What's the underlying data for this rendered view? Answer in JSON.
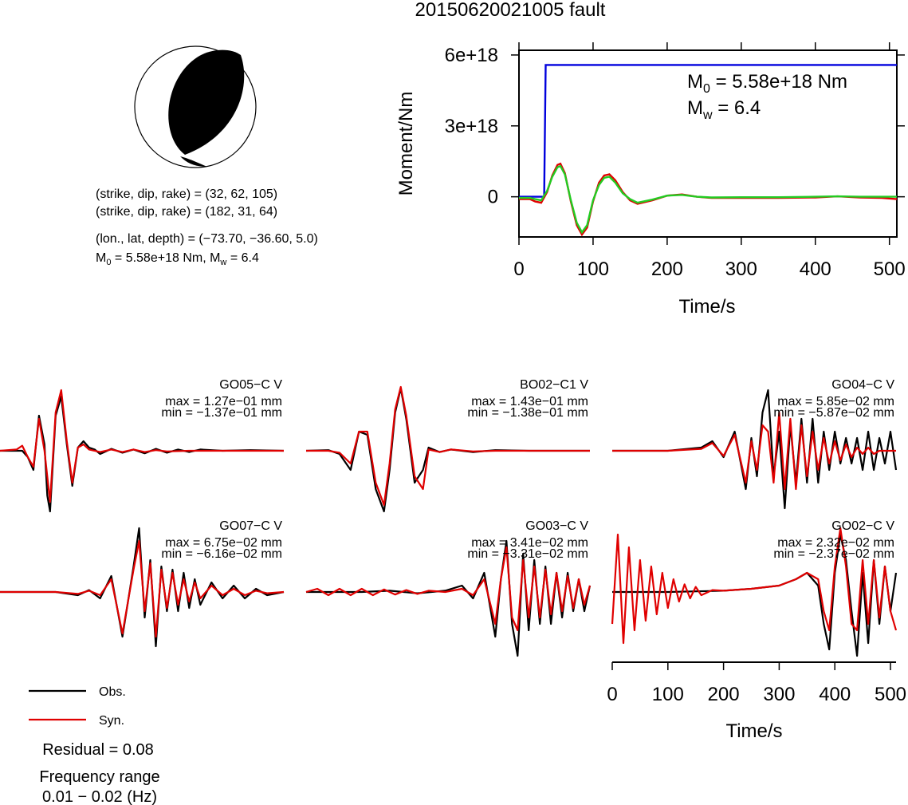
{
  "title": "20150620021005 fault",
  "beachball": {
    "nodal_planes": [
      {
        "label": "(strike, dip, rake) = (32, 62, 105)",
        "strike": 32,
        "dip": 62,
        "rake": 105
      },
      {
        "label": "(strike, dip, rake) = (182, 31, 64)",
        "strike": 182,
        "dip": 31,
        "rake": 64
      }
    ],
    "location_label": "(lon., lat, depth) = (−73.70, −36.60, 5.0)",
    "moment_line": {
      "m0_prefix": "M",
      "m0_sub": "0",
      "m0_text": " = 5.58e+18 Nm, M",
      "mw_sub": "w",
      "mw_text": " = 6.4"
    },
    "colors": {
      "fill": "#000000",
      "background": "#ffffff"
    }
  },
  "stf_panel": {
    "ylabel": "Moment/Nm",
    "xlabel": "Time/s",
    "yticks": [
      "6e+18",
      "3e+18",
      "0"
    ],
    "xticks": [
      "0",
      "100",
      "200",
      "300",
      "400",
      "500"
    ],
    "annotation": {
      "m0_prefix": "M",
      "m0_sub": "0",
      "m0_text": " = 5.58e+18 Nm",
      "mw_prefix": "M",
      "mw_sub": "w",
      "mw_text": " = 6.4"
    }
  },
  "waveforms": {
    "stations": [
      {
        "name": "GO05−C V",
        "max": "max = 1.27e−01 mm",
        "min": "min = −1.37e−01 mm"
      },
      {
        "name": "BO02−C1 V",
        "max": "max = 1.43e−01 mm",
        "min": "min = −1.38e−01 mm"
      },
      {
        "name": "GO04−C V",
        "max": "max = 5.85e−02 mm",
        "min": "min = −5.87e−02 mm"
      },
      {
        "name": "GO07−C V",
        "max": "max = 6.75e−02 mm",
        "min": "min = −6.16e−02 mm"
      },
      {
        "name": "GO03−C V",
        "max": "max = 3.41e−02 mm",
        "min": "min = −3.31e−02 mm"
      },
      {
        "name": "GO02−C V",
        "max": "max = 2.32e−02 mm",
        "min": "min = −2.37e−02 mm"
      }
    ],
    "xlabel": "Time/s",
    "xticks": [
      "0",
      "100",
      "200",
      "300",
      "400",
      "500"
    ]
  },
  "legend": {
    "obs_label": "Obs.",
    "syn_label": "Syn.",
    "residual": "Residual = 0.08",
    "freq_title": "Frequency range",
    "freq_value": "0.01 − 0.02 (Hz)"
  },
  "colors": {
    "observed": "#000000",
    "synthetic": "#e00000",
    "stf": "#0000dd",
    "stf_green": "#22cc22"
  },
  "chart_data": [
    {
      "type": "line",
      "title": "",
      "xlabel": "Time/s",
      "ylabel": "Moment/Nm",
      "xlim": [
        0,
        510
      ],
      "ylim": [
        -1.7e+18,
        6.2e+18
      ],
      "series": [
        {
          "x": [
            0,
            34,
            36,
            510
          ],
          "values": [
            0,
            0,
            5.58e+18,
            5.58e+18
          ]
        },
        {
          "x": [
            0,
            15,
            22,
            30,
            38,
            45,
            52,
            56,
            62,
            70,
            78,
            85,
            92,
            100,
            108,
            115,
            122,
            130,
            140,
            150,
            160,
            180,
            200,
            220,
            240,
            260,
            300,
            350,
            400,
            430,
            460,
            490,
            510
          ],
          "values": [
            -1e+17,
            -1e+17,
            -2e+17,
            -2.5e+17,
            2e+17,
            9e+17,
            1.35e+18,
            1.4e+18,
            1e+18,
            -2e+17,
            -1.2e+18,
            -1.6e+18,
            -1.3e+18,
            -2e+17,
            6e+17,
            9e+17,
            9.5e+17,
            7e+17,
            2e+17,
            -1.5e+17,
            -3e+17,
            -1.5e+17,
            5e+16,
            1e+17,
            0.0,
            -5e+16,
            -5e+16,
            -5e+16,
            -3e+16,
            2e+16,
            -3e+16,
            -5e+16,
            -1e+17
          ]
        },
        {
          "x": [
            0,
            15,
            22,
            30,
            38,
            45,
            52,
            56,
            62,
            70,
            78,
            85,
            92,
            100,
            108,
            115,
            122,
            130,
            140,
            150,
            160,
            180,
            200,
            220,
            240,
            260,
            300,
            350,
            400,
            430,
            460,
            490,
            510
          ],
          "values": [
            -5e+16,
            -5e+16,
            -1e+17,
            -1.5e+17,
            2.5e+17,
            8.5e+17,
            1.25e+18,
            1.3e+18,
            9.5e+17,
            -1.5e+17,
            -1.1e+18,
            -1.5e+18,
            -1.2e+18,
            -1.5e+17,
            5e+17,
            8e+17,
            8.5e+17,
            6e+17,
            1.5e+17,
            -1e+17,
            -2.5e+17,
            -1.2e+17,
            5e+16,
            8e+16,
            0.0,
            -3e+16,
            -2e+16,
            -2e+16,
            0.0,
            2e+16,
            0.0,
            0.0,
            0.0
          ]
        }
      ]
    },
    {
      "type": "line",
      "title": "GO05−C V",
      "xlim": [
        0,
        510
      ],
      "ylim": [
        -1.0,
        1.0
      ],
      "series": [
        {
          "x": [
            0,
            40,
            50,
            60,
            70,
            80,
            85,
            90,
            100,
            110,
            120,
            130,
            140,
            150,
            160,
            170,
            180,
            200,
            220,
            240,
            260,
            280,
            300,
            320,
            340,
            360,
            400,
            450,
            510
          ],
          "values": [
            0,
            0,
            -0.1,
            -0.3,
            0.55,
            0.1,
            -0.7,
            -0.95,
            0.55,
            0.85,
            0.1,
            -0.55,
            0.05,
            0.15,
            0.05,
            0.02,
            -0.05,
            0.03,
            -0.03,
            0.02,
            -0.04,
            0.03,
            -0.03,
            0.02,
            -0.02,
            0.02,
            0.0,
            0.01,
            0.0
          ]
        },
        {
          "x": [
            0,
            30,
            40,
            50,
            60,
            70,
            80,
            90,
            100,
            110,
            120,
            130,
            140,
            150,
            160,
            180,
            200,
            220,
            240,
            260,
            280,
            300,
            340,
            400,
            450,
            510
          ],
          "values": [
            0,
            0.02,
            0.08,
            -0.1,
            -0.25,
            0.5,
            0.0,
            -0.8,
            0.6,
            0.95,
            0.15,
            -0.5,
            0.05,
            0.1,
            0.02,
            -0.02,
            0.02,
            -0.02,
            0.02,
            -0.02,
            0.01,
            -0.01,
            0.0,
            0.0,
            0.0,
            0.0
          ]
        }
      ]
    },
    {
      "type": "line",
      "title": "BO02−C1 V",
      "xlim": [
        0,
        510
      ],
      "ylim": [
        -1.0,
        1.0
      ],
      "series": [
        {
          "x": [
            0,
            40,
            60,
            80,
            95,
            110,
            125,
            140,
            150,
            160,
            170,
            180,
            195,
            210,
            220,
            240,
            260,
            300,
            340,
            400,
            450,
            510
          ],
          "values": [
            0,
            0.01,
            -0.05,
            -0.3,
            0.3,
            0.25,
            -0.6,
            -0.95,
            -0.3,
            0.6,
            0.98,
            0.5,
            -0.5,
            -0.3,
            0.05,
            -0.02,
            0.02,
            -0.02,
            0.01,
            0.0,
            0.0,
            0.0
          ]
        },
        {
          "x": [
            0,
            40,
            60,
            80,
            95,
            110,
            125,
            140,
            150,
            160,
            170,
            180,
            195,
            210,
            220,
            240,
            260,
            300,
            340,
            400,
            450,
            510
          ],
          "values": [
            0,
            0.0,
            -0.03,
            -0.2,
            0.3,
            0.3,
            -0.5,
            -0.85,
            -0.2,
            0.65,
            1.0,
            0.55,
            -0.4,
            -0.6,
            0.02,
            -0.02,
            0.02,
            -0.01,
            0.0,
            0.0,
            0.0,
            0.0
          ]
        }
      ]
    },
    {
      "type": "line",
      "title": "GO04−C V",
      "xlim": [
        0,
        510
      ],
      "ylim": [
        -1.0,
        1.0
      ],
      "series": [
        {
          "x": [
            0,
            100,
            160,
            180,
            200,
            220,
            240,
            250,
            260,
            270,
            280,
            290,
            300,
            310,
            320,
            330,
            340,
            350,
            360,
            370,
            380,
            390,
            400,
            410,
            420,
            430,
            440,
            450,
            460,
            470,
            480,
            490,
            500,
            510
          ],
          "values": [
            0,
            0,
            0.05,
            0.15,
            -0.1,
            0.3,
            -0.6,
            0.2,
            -0.4,
            0.6,
            0.95,
            -0.4,
            0.3,
            -0.9,
            0.4,
            -0.5,
            0.5,
            -0.5,
            0.5,
            -0.5,
            0.3,
            -0.3,
            0.3,
            -0.2,
            0.2,
            -0.2,
            0.2,
            -0.3,
            0.3,
            -0.3,
            0.2,
            -0.2,
            0.3,
            -0.3
          ]
        },
        {
          "x": [
            0,
            100,
            160,
            180,
            200,
            220,
            240,
            250,
            260,
            270,
            280,
            290,
            300,
            310,
            320,
            330,
            340,
            350,
            360,
            370,
            380,
            390,
            400,
            410,
            420,
            430,
            440,
            450,
            460,
            470,
            480,
            490,
            500,
            510
          ],
          "values": [
            0,
            0,
            0.03,
            0.12,
            -0.08,
            0.25,
            -0.5,
            0.15,
            -0.3,
            0.4,
            0.3,
            -0.5,
            0.6,
            -0.6,
            0.5,
            -0.6,
            0.4,
            -0.4,
            0.3,
            -0.3,
            0.2,
            -0.2,
            0.15,
            -0.15,
            0.1,
            -0.1,
            0.05,
            -0.05,
            0.05,
            -0.05,
            0.0,
            0.0,
            0.0,
            0.0
          ]
        }
      ]
    },
    {
      "type": "line",
      "title": "GO07−C V",
      "xlim": [
        0,
        510
      ],
      "ylim": [
        -1.0,
        1.0
      ],
      "series": [
        {
          "x": [
            0,
            100,
            140,
            160,
            180,
            200,
            220,
            240,
            250,
            260,
            270,
            280,
            290,
            300,
            310,
            320,
            330,
            340,
            350,
            360,
            380,
            400,
            420,
            440,
            460,
            480,
            510
          ],
          "values": [
            0,
            0,
            -0.05,
            0.03,
            -0.1,
            0.25,
            -0.7,
            0.4,
            1.0,
            -0.4,
            0.5,
            -0.85,
            0.4,
            -0.3,
            0.35,
            -0.3,
            0.3,
            -0.25,
            0.2,
            -0.2,
            0.15,
            -0.1,
            0.1,
            -0.1,
            0.05,
            -0.05,
            0.0
          ]
        },
        {
          "x": [
            0,
            100,
            140,
            160,
            180,
            200,
            220,
            240,
            250,
            260,
            270,
            280,
            290,
            300,
            310,
            320,
            330,
            340,
            350,
            360,
            380,
            400,
            420,
            440,
            460,
            480,
            510
          ],
          "values": [
            0,
            0,
            -0.03,
            0.02,
            -0.05,
            0.2,
            -0.65,
            0.35,
            0.8,
            -0.3,
            0.45,
            -0.7,
            0.35,
            -0.25,
            0.3,
            -0.2,
            0.2,
            -0.15,
            0.15,
            -0.1,
            0.1,
            -0.05,
            0.05,
            -0.05,
            0.02,
            -0.02,
            0.0
          ]
        }
      ]
    },
    {
      "type": "line",
      "title": "GO03−C V",
      "xlim": [
        0,
        510
      ],
      "ylim": [
        -1.0,
        1.0
      ],
      "series": [
        {
          "x": [
            0,
            100,
            150,
            200,
            250,
            280,
            300,
            320,
            340,
            350,
            360,
            370,
            380,
            390,
            400,
            410,
            420,
            430,
            440,
            450,
            460,
            470,
            480,
            490,
            500,
            510
          ],
          "values": [
            0,
            0,
            0.02,
            -0.02,
            0.02,
            0.1,
            -0.1,
            0.3,
            -0.7,
            0.2,
            0.8,
            -0.5,
            -1.0,
            0.6,
            -0.6,
            0.5,
            -0.5,
            0.4,
            -0.5,
            0.3,
            -0.4,
            0.3,
            -0.3,
            0.2,
            -0.3,
            0.1
          ]
        },
        {
          "x": [
            0,
            20,
            40,
            60,
            80,
            100,
            120,
            140,
            160,
            180,
            200,
            220,
            250,
            280,
            300,
            320,
            340,
            350,
            360,
            370,
            380,
            390,
            400,
            410,
            420,
            430,
            440,
            450,
            460,
            470,
            480,
            490,
            500,
            510
          ],
          "values": [
            0,
            0.05,
            -0.05,
            0.05,
            -0.05,
            0.05,
            -0.05,
            0.04,
            -0.04,
            0.03,
            -0.03,
            0.02,
            0.0,
            0.05,
            -0.05,
            0.2,
            -0.5,
            0.2,
            0.7,
            -0.4,
            -0.6,
            0.5,
            -0.4,
            0.4,
            -0.4,
            0.35,
            -0.35,
            0.3,
            -0.3,
            0.25,
            -0.25,
            0.2,
            -0.2,
            0.1
          ]
        }
      ]
    },
    {
      "type": "line",
      "title": "GO02−C V",
      "xlim": [
        0,
        510
      ],
      "ylim": [
        -1.0,
        1.0
      ],
      "series": [
        {
          "x": [
            0,
            100,
            200,
            250,
            300,
            330,
            350,
            370,
            380,
            390,
            400,
            410,
            420,
            430,
            440,
            450,
            460,
            470,
            480,
            490,
            500,
            510
          ],
          "values": [
            0,
            0,
            0.02,
            0.05,
            0.1,
            0.2,
            0.3,
            0.1,
            -0.5,
            -0.9,
            0.3,
            0.9,
            0.5,
            -0.3,
            -1.0,
            0.3,
            -0.8,
            0.5,
            -0.5,
            0.4,
            -0.3,
            0.3
          ]
        },
        {
          "x": [
            0,
            10,
            20,
            30,
            40,
            50,
            60,
            70,
            80,
            90,
            100,
            110,
            120,
            130,
            140,
            150,
            160,
            180,
            200,
            250,
            300,
            330,
            350,
            370,
            380,
            390,
            400,
            410,
            420,
            430,
            440,
            450,
            460,
            470,
            480,
            490,
            500,
            510
          ],
          "values": [
            -0.5,
            0.9,
            -0.8,
            0.7,
            -0.6,
            0.5,
            -0.45,
            0.4,
            -0.35,
            0.3,
            -0.25,
            0.2,
            -0.15,
            0.12,
            -0.1,
            0.08,
            -0.05,
            0.03,
            0.02,
            0.05,
            0.1,
            0.2,
            0.3,
            0.2,
            -0.3,
            -0.6,
            0.4,
            1.0,
            0.4,
            -0.5,
            -0.6,
            0.5,
            -0.5,
            0.5,
            -0.4,
            0.4,
            -0.3,
            -0.6
          ]
        }
      ]
    }
  ]
}
